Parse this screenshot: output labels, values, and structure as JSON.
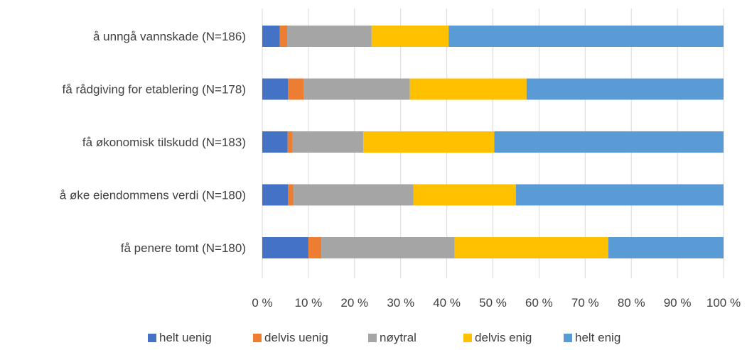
{
  "chart_data": {
    "type": "bar",
    "orientation": "horizontal",
    "stacked": "percent",
    "categories": [
      "å unngå vannskade (N=186)",
      "få rådgiving for etablering (N=178)",
      "få økonomisk tilskudd (N=183)",
      "å øke eiendommens verdi (N=180)",
      "få penere tomt (N=180)"
    ],
    "series": [
      {
        "name": "helt uenig",
        "color": "#4472C4",
        "values": [
          3.8,
          5.6,
          5.5,
          5.6,
          10.0
        ]
      },
      {
        "name": "delvis uenig",
        "color": "#ED7D31",
        "values": [
          1.6,
          3.4,
          1.1,
          1.1,
          2.8
        ]
      },
      {
        "name": "nøytral",
        "color": "#A5A5A5",
        "values": [
          18.3,
          23.0,
          15.3,
          26.1,
          28.9
        ]
      },
      {
        "name": "delvis enig",
        "color": "#FFC000",
        "values": [
          16.7,
          25.3,
          28.4,
          22.2,
          33.3
        ]
      },
      {
        "name": "helt enig",
        "color": "#5B9BD5",
        "values": [
          59.6,
          42.7,
          49.7,
          45.0,
          25.0
        ]
      }
    ],
    "xlim": [
      0,
      100
    ],
    "x_ticks": [
      "0 %",
      "10 %",
      "20 %",
      "30 %",
      "40 %",
      "50 %",
      "60 %",
      "70 %",
      "80 %",
      "90 %",
      "100 %"
    ],
    "grid": true,
    "legend_position": "bottom"
  }
}
